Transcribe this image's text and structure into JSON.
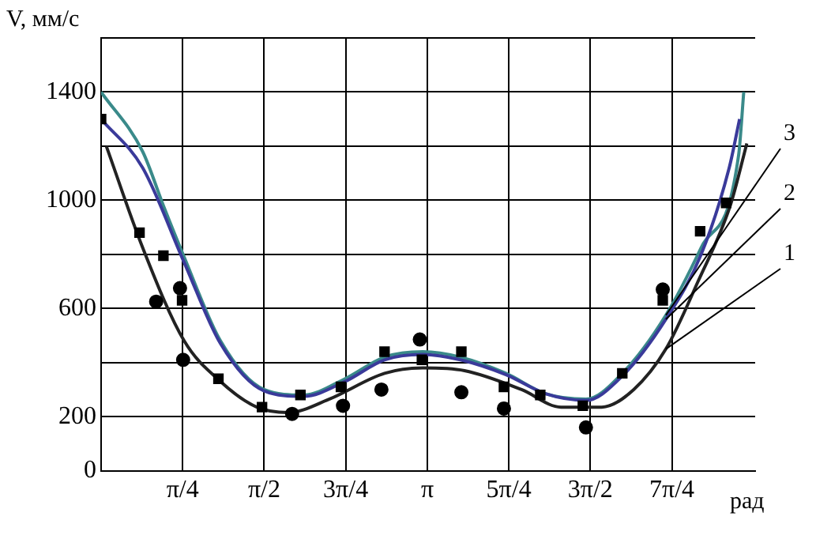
{
  "chart_data": {
    "type": "line",
    "ylabel": "V, мм/с",
    "xlabel": "рад",
    "xlim": [
      0,
      6.3
    ],
    "ylim": [
      0,
      1600
    ],
    "xticks": [
      {
        "value": 0.785,
        "label": "π/4"
      },
      {
        "value": 1.571,
        "label": "π/2"
      },
      {
        "value": 2.356,
        "label": "3π/4"
      },
      {
        "value": 3.142,
        "label": "π"
      },
      {
        "value": 3.927,
        "label": "5π/4"
      },
      {
        "value": 4.712,
        "label": "3π/2"
      },
      {
        "value": 5.498,
        "label": "7π/4"
      }
    ],
    "yticks": [
      {
        "value": 0,
        "label": "0"
      },
      200,
      {
        "value": 400,
        "label": null
      },
      600,
      {
        "value": 800,
        "label": null
      },
      1000,
      {
        "value": 1200,
        "label": null
      },
      1400,
      {
        "value": 1600,
        "label": null
      }
    ],
    "grid": true,
    "legend": false,
    "marker": "none",
    "series": [
      {
        "name": "1",
        "type": "line",
        "color": "#222222",
        "x": [
          0.05,
          0.4,
          0.8,
          1.15,
          1.5,
          1.8,
          2.2,
          2.73,
          3.1,
          3.5,
          4.05,
          4.43,
          4.82,
          5.13,
          5.44,
          5.75,
          6.06,
          6.22
        ],
        "values": [
          1200,
          825,
          480,
          330,
          235,
          215,
          265,
          360,
          380,
          370,
          300,
          235,
          235,
          300,
          450,
          700,
          980,
          1210
        ]
      },
      {
        "name": "2",
        "type": "line",
        "color": "#3a3a9a",
        "x": [
          0,
          0.4,
          0.8,
          1.15,
          1.57,
          1.95,
          2.35,
          2.73,
          3.1,
          3.46,
          3.9,
          4.28,
          4.67,
          5.02,
          5.44,
          5.78,
          6.05,
          6.15
        ],
        "values": [
          1300,
          1120,
          770,
          470,
          295,
          275,
          330,
          410,
          430,
          410,
          355,
          285,
          260,
          350,
          560,
          800,
          1120,
          1300
        ]
      },
      {
        "name": "3",
        "type": "line",
        "color": "#3a8a8a",
        "x": [
          0,
          0.4,
          0.6,
          0.8,
          1.15,
          1.57,
          1.95,
          2.35,
          2.73,
          3.1,
          3.46,
          3.9,
          4.28,
          4.67,
          5.02,
          5.44,
          5.78,
          6.14,
          6.19
        ],
        "values": [
          1400,
          1180,
          980,
          790,
          480,
          300,
          280,
          340,
          420,
          440,
          420,
          360,
          285,
          265,
          360,
          575,
          825,
          1165,
          1400
        ]
      },
      {
        "type": "scatter",
        "marker": "square",
        "color": "#000000",
        "x": [
          0,
          0.37,
          0.6,
          0.78,
          1.13,
          1.55,
          1.92,
          2.31,
          2.73,
          3.09,
          3.47,
          3.88,
          4.23,
          4.64,
          5.02,
          5.41,
          5.77,
          6.02
        ],
        "values": [
          1300,
          880,
          795,
          630,
          340,
          235,
          280,
          310,
          440,
          410,
          440,
          310,
          280,
          240,
          360,
          630,
          885,
          990
        ]
      },
      {
        "type": "scatter",
        "marker": "circle",
        "color": "#000000",
        "x": [
          0.53,
          0.76,
          0.79,
          1.84,
          2.33,
          2.7,
          3.07,
          3.47,
          3.88,
          4.67,
          5.41
        ],
        "values": [
          625,
          675,
          410,
          210,
          240,
          300,
          485,
          290,
          230,
          160,
          670
        ]
      }
    ]
  }
}
